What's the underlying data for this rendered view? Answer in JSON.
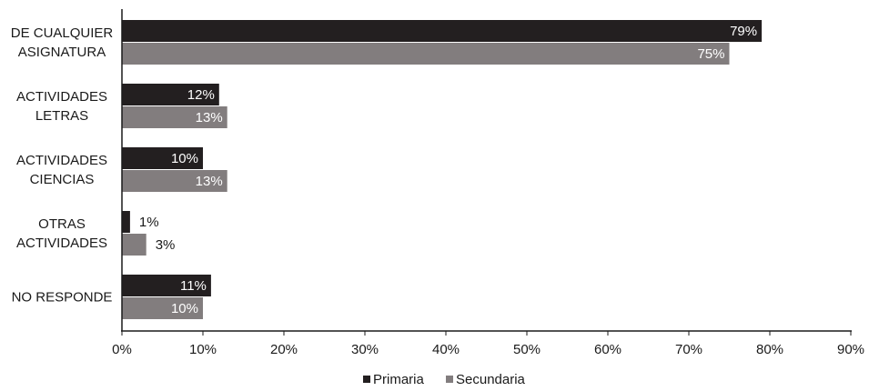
{
  "chart_data": {
    "type": "bar",
    "orientation": "horizontal",
    "categories": [
      [
        "DE CUALQUIER",
        "ASIGNATURA"
      ],
      [
        "ACTIVIDADES",
        "LETRAS"
      ],
      [
        "ACTIVIDADES",
        "CIENCIAS"
      ],
      [
        "OTRAS",
        "ACTIVIDADES"
      ],
      [
        "NO RESPONDE"
      ]
    ],
    "series": [
      {
        "name": "Primaria",
        "values": [
          79,
          12,
          10,
          1,
          11
        ],
        "labels": [
          "79%",
          "12%",
          "10%",
          "1%",
          "11%"
        ],
        "color": "#231f20"
      },
      {
        "name": "Secundaria",
        "values": [
          75,
          13,
          13,
          3,
          10
        ],
        "labels": [
          "75%",
          "13%",
          "13%",
          "3%",
          "10%"
        ],
        "color": "#827d7e"
      }
    ],
    "xlim": [
      0,
      90
    ],
    "xticks": [
      0,
      10,
      20,
      30,
      40,
      50,
      60,
      70,
      80,
      90
    ],
    "xtick_labels": [
      "0%",
      "10%",
      "20%",
      "30%",
      "40%",
      "50%",
      "60%",
      "70%",
      "80%",
      "90%"
    ],
    "grid": false,
    "legend_position": "bottom-center",
    "title": "",
    "xlabel": "",
    "ylabel": ""
  }
}
